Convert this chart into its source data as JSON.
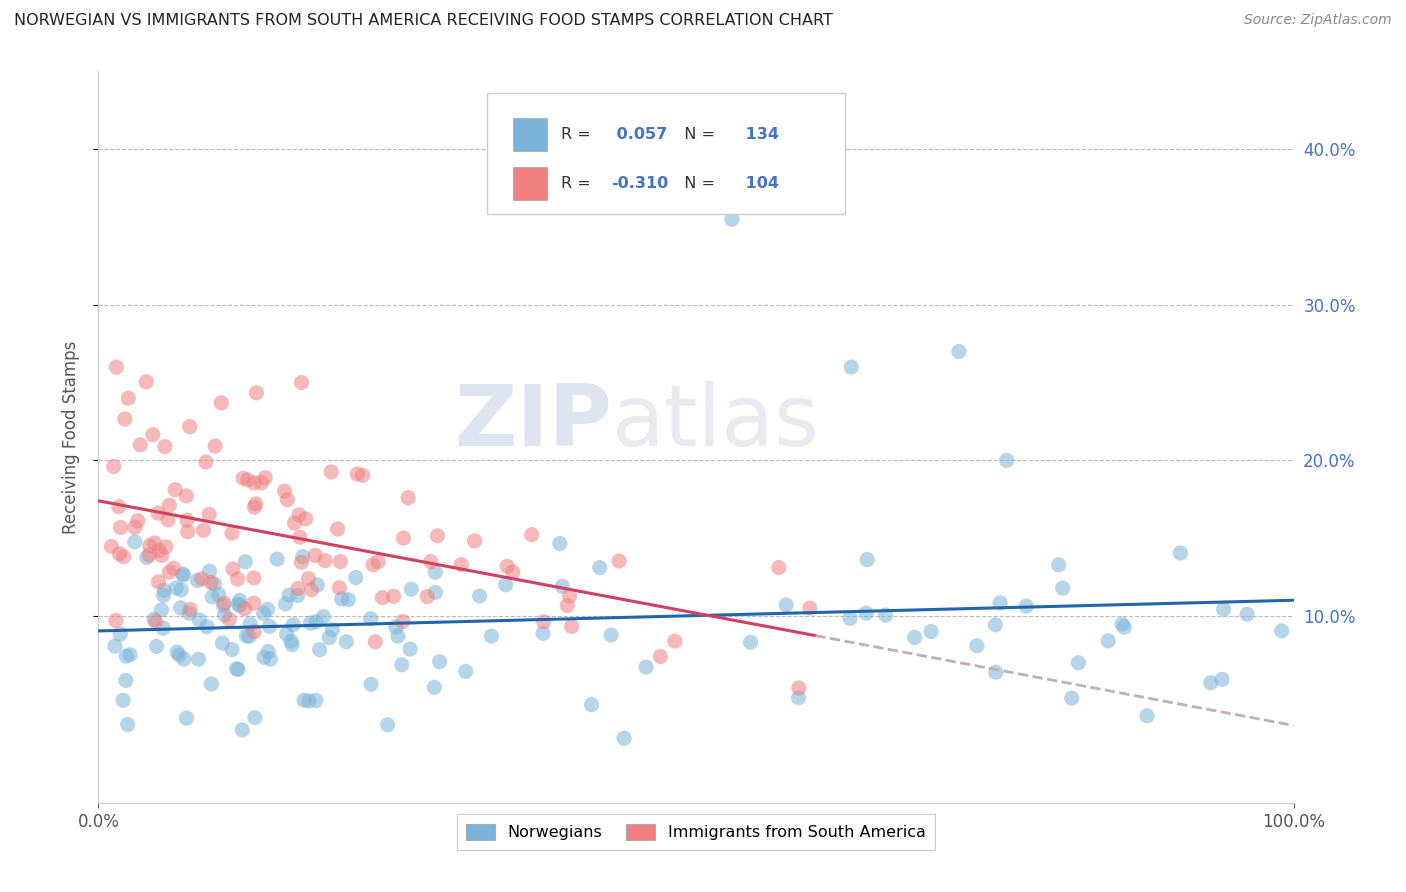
{
  "title": "NORWEGIAN VS IMMIGRANTS FROM SOUTH AMERICA RECEIVING FOOD STAMPS CORRELATION CHART",
  "source": "Source: ZipAtlas.com",
  "ylabel": "Receiving Food Stamps",
  "xlim": [
    0.0,
    1.0
  ],
  "ylim": [
    -0.02,
    0.45
  ],
  "yticks": [
    0.1,
    0.2,
    0.3,
    0.4
  ],
  "ytick_labels_right": [
    "10.0%",
    "20.0%",
    "30.0%",
    "40.0%"
  ],
  "xticks": [
    0.0,
    1.0
  ],
  "xtick_labels": [
    "0.0%",
    "100.0%"
  ],
  "norwegian_R": 0.057,
  "norwegian_N": 134,
  "immigrant_R": -0.31,
  "immigrant_N": 104,
  "norwegian_color": "#7ab4d8",
  "immigrant_color": "#f08080",
  "norwegian_line_color": "#2166ac",
  "immigrant_line_color": "#d04060",
  "dash_color": "#c0b0b0",
  "watermark_zip": "ZIP",
  "watermark_atlas": "atlas",
  "legend_items": [
    "Norwegians",
    "Immigrants from South America"
  ],
  "background_color": "#ffffff",
  "grid_color": "#bbbbbb",
  "title_color": "#222222",
  "right_tick_color": "#4472c4",
  "box_text_color": "#333333",
  "numeric_color": "#4472c4"
}
